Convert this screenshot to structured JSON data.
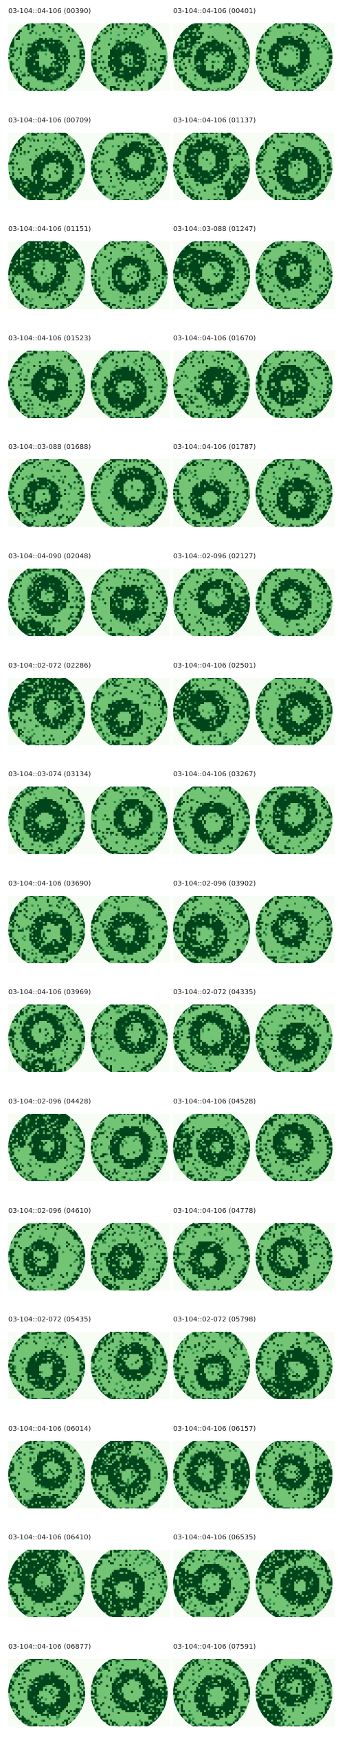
{
  "colors": {
    "background": "#f7fcf5",
    "light": "#74c476",
    "dark": "#00441b",
    "mid": "#238b45"
  },
  "panels": [
    {
      "title": "03-104::04-106 (00390)"
    },
    {
      "title": "03-104::04-106 (00401)"
    },
    {
      "title": "03-104::04-106 (00709)"
    },
    {
      "title": "03-104::04-106 (01137)"
    },
    {
      "title": "03-104::04-106 (01151)"
    },
    {
      "title": "03-104::03-088 (01247)"
    },
    {
      "title": "03-104::04-106 (01523)"
    },
    {
      "title": "03-104::04-106 (01670)"
    },
    {
      "title": "03-104::03-088 (01688)"
    },
    {
      "title": "03-104::04-106 (01787)"
    },
    {
      "title": "03-104::04-090 (02048)"
    },
    {
      "title": "03-104::02-096 (02127)"
    },
    {
      "title": "03-104::02-072 (02286)"
    },
    {
      "title": "03-104::04-106 (02501)"
    },
    {
      "title": "03-104::03-074 (03134)"
    },
    {
      "title": "03-104::04-106 (03267)"
    },
    {
      "title": "03-104::04-106 (03690)"
    },
    {
      "title": "03-104::02-096 (03902)"
    },
    {
      "title": "03-104::04-106 (03969)"
    },
    {
      "title": "03-104::02-072 (04335)"
    },
    {
      "title": "03-104::02-096 (04428)"
    },
    {
      "title": "03-104::04-106 (04528)"
    },
    {
      "title": "03-104::02-096 (04610)"
    },
    {
      "title": "03-104::04-106 (04778)"
    },
    {
      "title": "03-104::02-072 (05435)"
    },
    {
      "title": "03-104::02-072 (05798)"
    },
    {
      "title": "03-104::04-106 (06014)"
    },
    {
      "title": "03-104::04-106 (06157)"
    },
    {
      "title": "03-104::04-106 (06410)"
    },
    {
      "title": "03-104::04-106 (06535)"
    },
    {
      "title": "03-104::04-106 (06877)"
    },
    {
      "title": "03-104::04-106 (07591)"
    }
  ]
}
